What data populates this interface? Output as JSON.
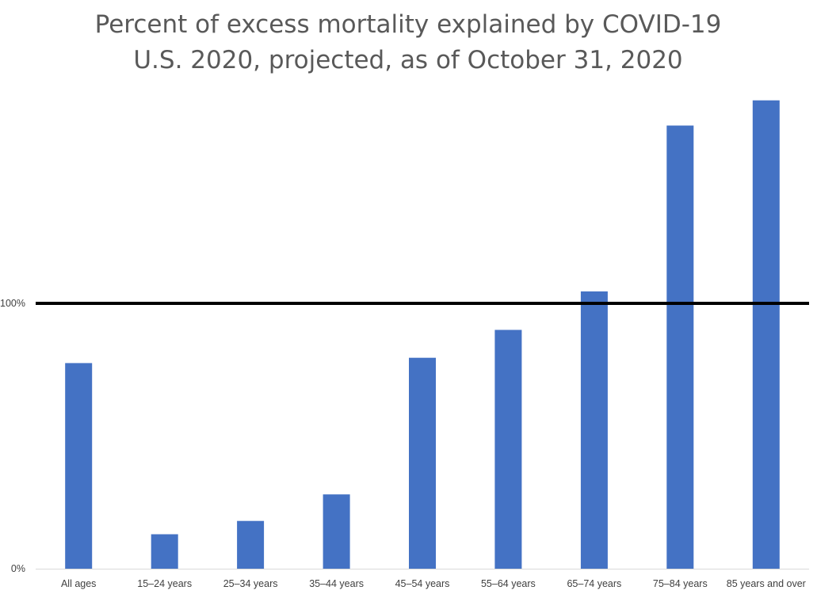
{
  "chart_data": {
    "type": "bar",
    "title": [
      "Percent of excess mortality explained by COVID-19",
      "U.S. 2020, projected, as of October 31, 2020"
    ],
    "categories": [
      "All ages",
      "15–24 years",
      "25–34 years",
      "35–44 years",
      "45–54 years",
      "55–64 years",
      "65–74 years",
      "75–84 years",
      "85 years and over"
    ],
    "series": [
      {
        "name": "Percent of excess mortality explained by COVID-19",
        "values": [
          77.5,
          13,
          18,
          28,
          79.5,
          90,
          104.5,
          167,
          176.5
        ],
        "color": "#4472c4"
      }
    ],
    "y_ticks": [
      {
        "value": 0,
        "label": "0%"
      },
      {
        "value": 100,
        "label": "100%"
      }
    ],
    "ylim": [
      0,
      180
    ],
    "reference_line": {
      "value": 100,
      "color": "#000000"
    },
    "grid": false,
    "legend": "none",
    "xlabel": "",
    "ylabel": ""
  }
}
